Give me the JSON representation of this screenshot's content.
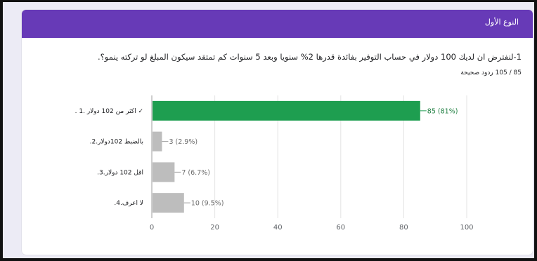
{
  "section": {
    "title": "النوع الأول"
  },
  "question": {
    "text": "1-لنفترض ان لديك 100 دولار في حساب التوفير بفائدة قدرها 2% سنويا وبعد 5 سنوات كم تمتقد سيكون المبلغ لو تركته ينمو؟.",
    "correct_count": "85 / 105 ردود صحيحة"
  },
  "colors": {
    "header": "#673ab7",
    "correct": "#1e9e50",
    "other": "#bdbdbd"
  },
  "chart_data": {
    "type": "bar",
    "orientation": "horizontal",
    "categories": [
      ". اكثر من 102 دولار .1 ✓",
      ".بالضبط 102دولار.2",
      ".اقل 102 دولار.3",
      ".لا اعرف.4"
    ],
    "values": [
      85,
      3,
      7,
      10
    ],
    "labels": [
      "85 (81%)",
      "3 (2.9%)",
      "7 (6.7%)",
      "10 (9.5%)"
    ],
    "correct": [
      true,
      false,
      false,
      false
    ],
    "xlim": [
      0,
      100
    ],
    "xticks": [
      "0",
      "20",
      "40",
      "60",
      "80",
      "100"
    ],
    "grid": true
  }
}
